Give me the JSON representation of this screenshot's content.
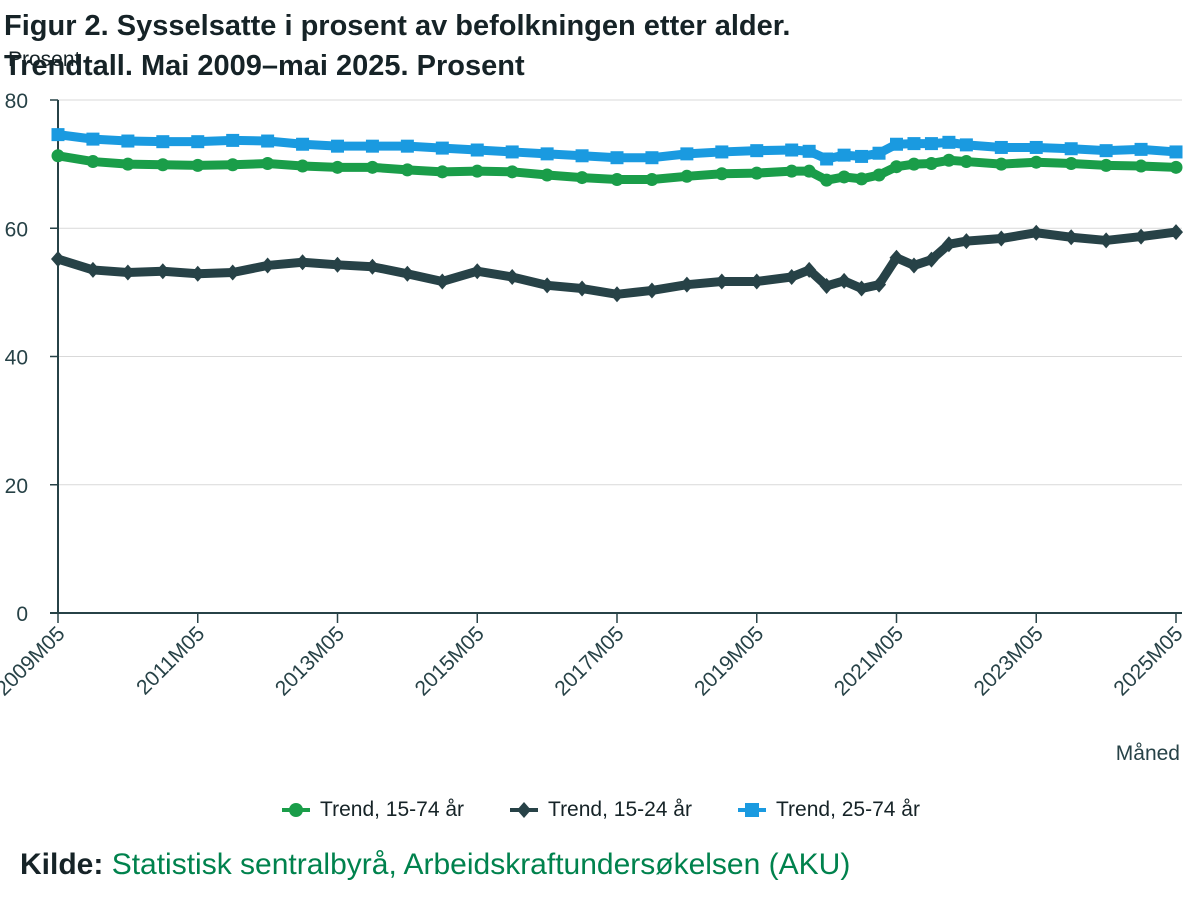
{
  "chart_data": {
    "type": "line",
    "title_line1": "Figur 2. Sysselsatte i prosent av befolkningen etter alder.",
    "title_line2": "Trendtall. Mai 2009–mai 2025. Prosent",
    "ylabel": "Prosent",
    "xlabel": "Måned",
    "ylim": [
      0,
      80
    ],
    "yticks": [
      0,
      20,
      40,
      60,
      80
    ],
    "xlim": [
      "2009M05",
      "2025M05"
    ],
    "xticks": [
      "2009M05",
      "2011M05",
      "2013M05",
      "2015M05",
      "2017M05",
      "2019M05",
      "2021M05",
      "2023M05",
      "2025M05"
    ],
    "grid": true,
    "legend_position": "bottom",
    "x": [
      "2009M05",
      "2009M11",
      "2010M05",
      "2010M11",
      "2011M05",
      "2011M11",
      "2012M05",
      "2012M11",
      "2013M05",
      "2013M11",
      "2014M05",
      "2014M11",
      "2015M05",
      "2015M11",
      "2016M05",
      "2016M11",
      "2017M05",
      "2017M11",
      "2018M05",
      "2018M11",
      "2019M05",
      "2019M11",
      "2020M02",
      "2020M05",
      "2020M08",
      "2020M11",
      "2021M02",
      "2021M05",
      "2021M08",
      "2021M11",
      "2022M02",
      "2022M05",
      "2022M11",
      "2023M05",
      "2023M11",
      "2024M05",
      "2024M11",
      "2025M05"
    ],
    "series": [
      {
        "name": "Trend, 15-74 år",
        "color": "#1a9d49",
        "marker": "circle",
        "values": [
          71.3,
          70.4,
          70.0,
          69.9,
          69.8,
          69.9,
          70.1,
          69.7,
          69.5,
          69.5,
          69.1,
          68.8,
          68.9,
          68.8,
          68.3,
          67.9,
          67.6,
          67.6,
          68.1,
          68.5,
          68.6,
          68.9,
          68.9,
          67.5,
          68.0,
          67.7,
          68.3,
          69.6,
          70.0,
          70.1,
          70.6,
          70.4,
          70.0,
          70.3,
          70.1,
          69.8,
          69.7,
          69.5
        ]
      },
      {
        "name": "Trend, 15-24 år",
        "color": "#274247",
        "marker": "diamond",
        "values": [
          55.2,
          53.5,
          53.1,
          53.3,
          52.9,
          53.1,
          54.2,
          54.7,
          54.3,
          54.0,
          52.9,
          51.7,
          53.3,
          52.4,
          51.1,
          50.6,
          49.7,
          50.3,
          51.2,
          51.7,
          51.7,
          52.4,
          53.5,
          51.0,
          51.8,
          50.6,
          51.2,
          55.4,
          54.2,
          55.1,
          57.5,
          58.0,
          58.4,
          59.3,
          58.6,
          58.1,
          58.7,
          59.4
        ]
      },
      {
        "name": "Trend, 25-74 år",
        "color": "#1a9ae0",
        "marker": "square",
        "values": [
          74.6,
          73.9,
          73.6,
          73.5,
          73.5,
          73.7,
          73.6,
          73.1,
          72.8,
          72.8,
          72.8,
          72.5,
          72.2,
          71.9,
          71.6,
          71.3,
          71.0,
          71.0,
          71.6,
          71.9,
          72.1,
          72.2,
          72.0,
          70.8,
          71.4,
          71.2,
          71.7,
          73.1,
          73.2,
          73.2,
          73.4,
          73.0,
          72.6,
          72.6,
          72.4,
          72.1,
          72.3,
          71.9
        ]
      }
    ]
  },
  "source": {
    "label": "Kilde:",
    "text": "Statistisk sentralbyrå, Arbeidskraftundersøkelsen (AKU)"
  }
}
